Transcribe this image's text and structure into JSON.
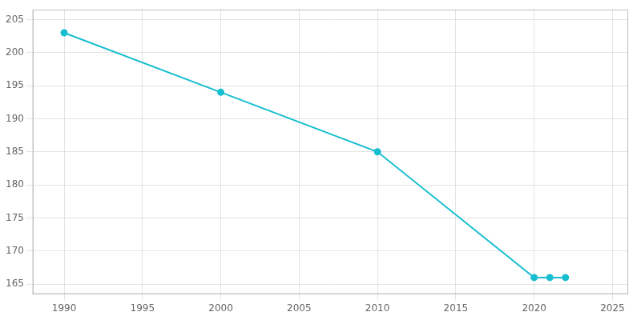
{
  "chart_data": {
    "type": "line",
    "x": [
      1990,
      2000,
      2010,
      2020,
      2021,
      2022
    ],
    "values": [
      203,
      194,
      185,
      166,
      166,
      166
    ],
    "color": "#17becf",
    "marker": "circle",
    "xlim": [
      1988,
      2026
    ],
    "ylim": [
      163.5,
      206.5
    ],
    "xticks": [
      1990,
      1995,
      2000,
      2005,
      2010,
      2015,
      2020,
      2025
    ],
    "yticks": [
      165,
      170,
      175,
      180,
      185,
      190,
      195,
      200,
      205
    ],
    "grid": true
  }
}
